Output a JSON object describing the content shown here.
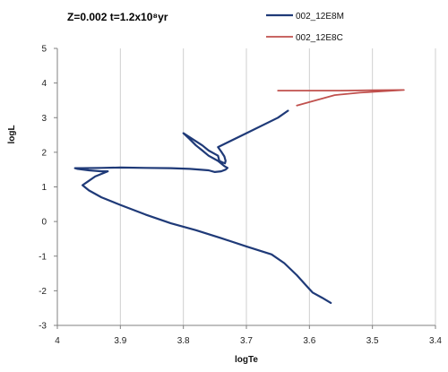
{
  "chart_data": {
    "type": "line",
    "title": "Z=0.002  t=1.2x10⁸yr",
    "xlabel": "logTe",
    "ylabel": "logL",
    "xlim": [
      4,
      3.4
    ],
    "x_reversed": true,
    "ylim": [
      -3,
      5
    ],
    "x_ticks": [
      "4",
      "3.9",
      "3.8",
      "3.7",
      "3.6",
      "3.5",
      "3.4"
    ],
    "y_ticks": [
      "-3",
      "-2",
      "-1",
      "0",
      "1",
      "2",
      "3",
      "4",
      "5"
    ],
    "x_tick_values": [
      4,
      3.9,
      3.8,
      3.7,
      3.6,
      3.5,
      3.4
    ],
    "y_tick_values": [
      -3,
      -2,
      -1,
      0,
      1,
      2,
      3,
      4,
      5
    ],
    "grid": "vertical",
    "legend": "top-right",
    "series": [
      {
        "name": "002_12E8M",
        "color": "#1f3a78",
        "x": [
          3.566,
          3.58,
          3.595,
          3.605,
          3.62,
          3.64,
          3.66,
          3.7,
          3.74,
          3.78,
          3.82,
          3.86,
          3.9,
          3.93,
          3.95,
          3.96,
          3.952,
          3.94,
          3.92,
          3.93,
          3.95,
          3.968,
          3.972,
          3.96,
          3.93,
          3.9,
          3.86,
          3.82,
          3.79,
          3.76,
          3.75,
          3.74,
          3.733,
          3.73,
          3.735,
          3.745,
          3.76,
          3.77,
          3.78,
          3.79,
          3.8,
          3.77,
          3.76,
          3.745,
          3.743,
          3.737,
          3.734,
          3.733,
          3.735,
          3.74,
          3.745,
          3.7,
          3.65,
          3.634
        ],
        "y": [
          -2.35,
          -2.2,
          -2.05,
          -1.85,
          -1.55,
          -1.2,
          -0.95,
          -0.72,
          -0.48,
          -0.25,
          -0.05,
          0.2,
          0.48,
          0.7,
          0.9,
          1.05,
          1.15,
          1.3,
          1.45,
          1.45,
          1.48,
          1.52,
          1.54,
          1.54,
          1.55,
          1.56,
          1.55,
          1.54,
          1.52,
          1.48,
          1.43,
          1.45,
          1.5,
          1.55,
          1.6,
          1.75,
          1.9,
          2.05,
          2.2,
          2.38,
          2.55,
          2.2,
          2.05,
          1.9,
          1.75,
          1.7,
          1.68,
          1.75,
          1.88,
          2.02,
          2.15,
          2.55,
          3.0,
          3.2
        ]
      },
      {
        "name": "002_12E8C",
        "color": "#c0504d",
        "x": [
          3.62,
          3.6,
          3.56,
          3.52,
          3.45,
          3.5,
          3.55,
          3.6,
          3.65
        ],
        "y": [
          3.35,
          3.45,
          3.65,
          3.72,
          3.8,
          3.79,
          3.78,
          3.78,
          3.78
        ]
      }
    ]
  }
}
